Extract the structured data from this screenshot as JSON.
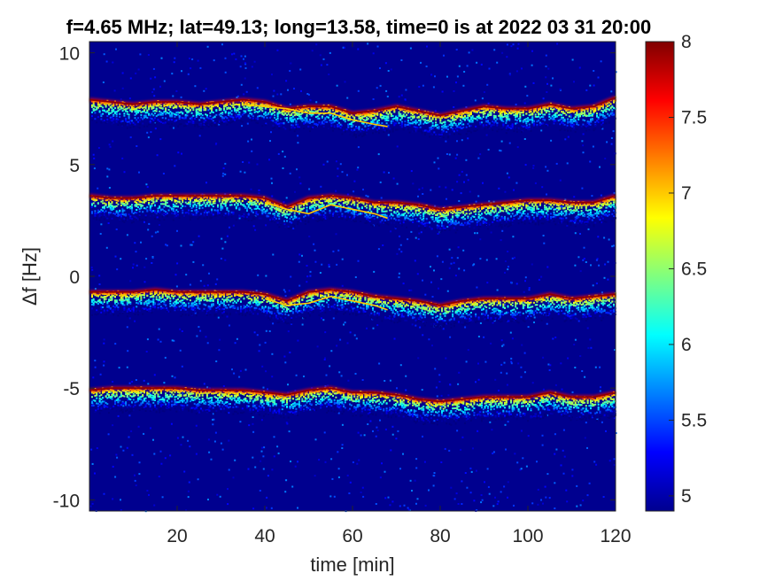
{
  "chart_data": {
    "type": "heatmap",
    "title": "f=4.65 MHz;  lat=49.13; long=13.58, time=0 is at 2022 03 31 20:00",
    "xlabel": "time [min]",
    "ylabel": "Δf [Hz]",
    "xlim": [
      0,
      120
    ],
    "ylim": [
      -10.5,
      10.5
    ],
    "x_ticks": [
      20,
      40,
      60,
      80,
      100,
      120
    ],
    "x_tick_labels": [
      "20",
      "40",
      "60",
      "80",
      "100",
      "120"
    ],
    "y_ticks": [
      10,
      5,
      0,
      -5,
      -10
    ],
    "y_tick_labels": [
      "10",
      "5",
      "0",
      "-5",
      "-10"
    ],
    "colorbar": {
      "colormap": "jet",
      "clim": [
        4.9,
        8
      ],
      "ticks": [
        5,
        5.5,
        6,
        6.5,
        7,
        7.5,
        8
      ],
      "tick_labels": [
        "5",
        "5.5",
        "6",
        "6.5",
        "7",
        "7.5",
        "8"
      ]
    },
    "background_level": 5.0,
    "series": [
      {
        "t": [
          0,
          5,
          10,
          15,
          20,
          25,
          30,
          35,
          40,
          45,
          50,
          55,
          60,
          65,
          70,
          75,
          80,
          85,
          90,
          95,
          100,
          105,
          110,
          115,
          120
        ],
        "df": [
          7.9,
          7.8,
          7.7,
          7.8,
          7.8,
          7.7,
          7.8,
          7.9,
          7.8,
          7.5,
          7.6,
          7.6,
          7.3,
          7.4,
          7.6,
          7.4,
          7.2,
          7.4,
          7.6,
          7.5,
          7.5,
          7.7,
          7.5,
          7.6,
          8.0
        ]
      },
      {
        "t": [
          0,
          5,
          10,
          15,
          20,
          25,
          30,
          35,
          40,
          45,
          50,
          55,
          60,
          65,
          70,
          75,
          80,
          85,
          90,
          95,
          100,
          105,
          110,
          115,
          120
        ],
        "df": [
          3.6,
          3.5,
          3.5,
          3.6,
          3.6,
          3.6,
          3.6,
          3.6,
          3.5,
          3.1,
          3.5,
          3.6,
          3.5,
          3.3,
          3.3,
          3.2,
          3.0,
          3.1,
          3.2,
          3.3,
          3.4,
          3.4,
          3.3,
          3.3,
          3.6
        ]
      },
      {
        "t": [
          0,
          5,
          10,
          15,
          20,
          25,
          30,
          35,
          40,
          45,
          50,
          55,
          60,
          65,
          70,
          75,
          80,
          85,
          90,
          95,
          100,
          105,
          110,
          115,
          120
        ],
        "df": [
          -0.7,
          -0.7,
          -0.7,
          -0.6,
          -0.7,
          -0.7,
          -0.7,
          -0.7,
          -0.8,
          -1.1,
          -0.7,
          -0.6,
          -0.7,
          -0.9,
          -1.0,
          -1.1,
          -1.3,
          -1.1,
          -1.0,
          -1.0,
          -1.0,
          -0.8,
          -1.0,
          -0.9,
          -0.8
        ]
      },
      {
        "t": [
          0,
          5,
          10,
          15,
          20,
          25,
          30,
          35,
          40,
          45,
          50,
          55,
          60,
          65,
          70,
          75,
          80,
          85,
          90,
          95,
          100,
          105,
          110,
          115,
          120
        ],
        "df": [
          -5.1,
          -5.0,
          -5.0,
          -5.0,
          -5.0,
          -5.1,
          -5.1,
          -5.1,
          -5.2,
          -5.3,
          -5.1,
          -5.0,
          -5.2,
          -5.2,
          -5.3,
          -5.5,
          -5.6,
          -5.5,
          -5.4,
          -5.4,
          -5.4,
          -5.2,
          -5.4,
          -5.4,
          -5.2
        ]
      }
    ],
    "secondary_traces": [
      {
        "t": [
          35,
          40,
          45,
          50,
          55,
          60,
          65,
          68
        ],
        "df": [
          7.7,
          7.6,
          7.5,
          7.3,
          7.3,
          7.0,
          6.8,
          6.7
        ]
      },
      {
        "t": [
          40,
          45,
          50,
          55,
          60,
          65,
          68
        ],
        "df": [
          3.3,
          3.0,
          2.8,
          3.2,
          3.0,
          2.8,
          2.6
        ]
      },
      {
        "t": [
          40,
          45,
          50,
          55,
          60,
          65,
          68
        ],
        "df": [
          -1.0,
          -1.3,
          -1.2,
          -0.9,
          -1.1,
          -1.3,
          -1.5
        ]
      }
    ]
  }
}
